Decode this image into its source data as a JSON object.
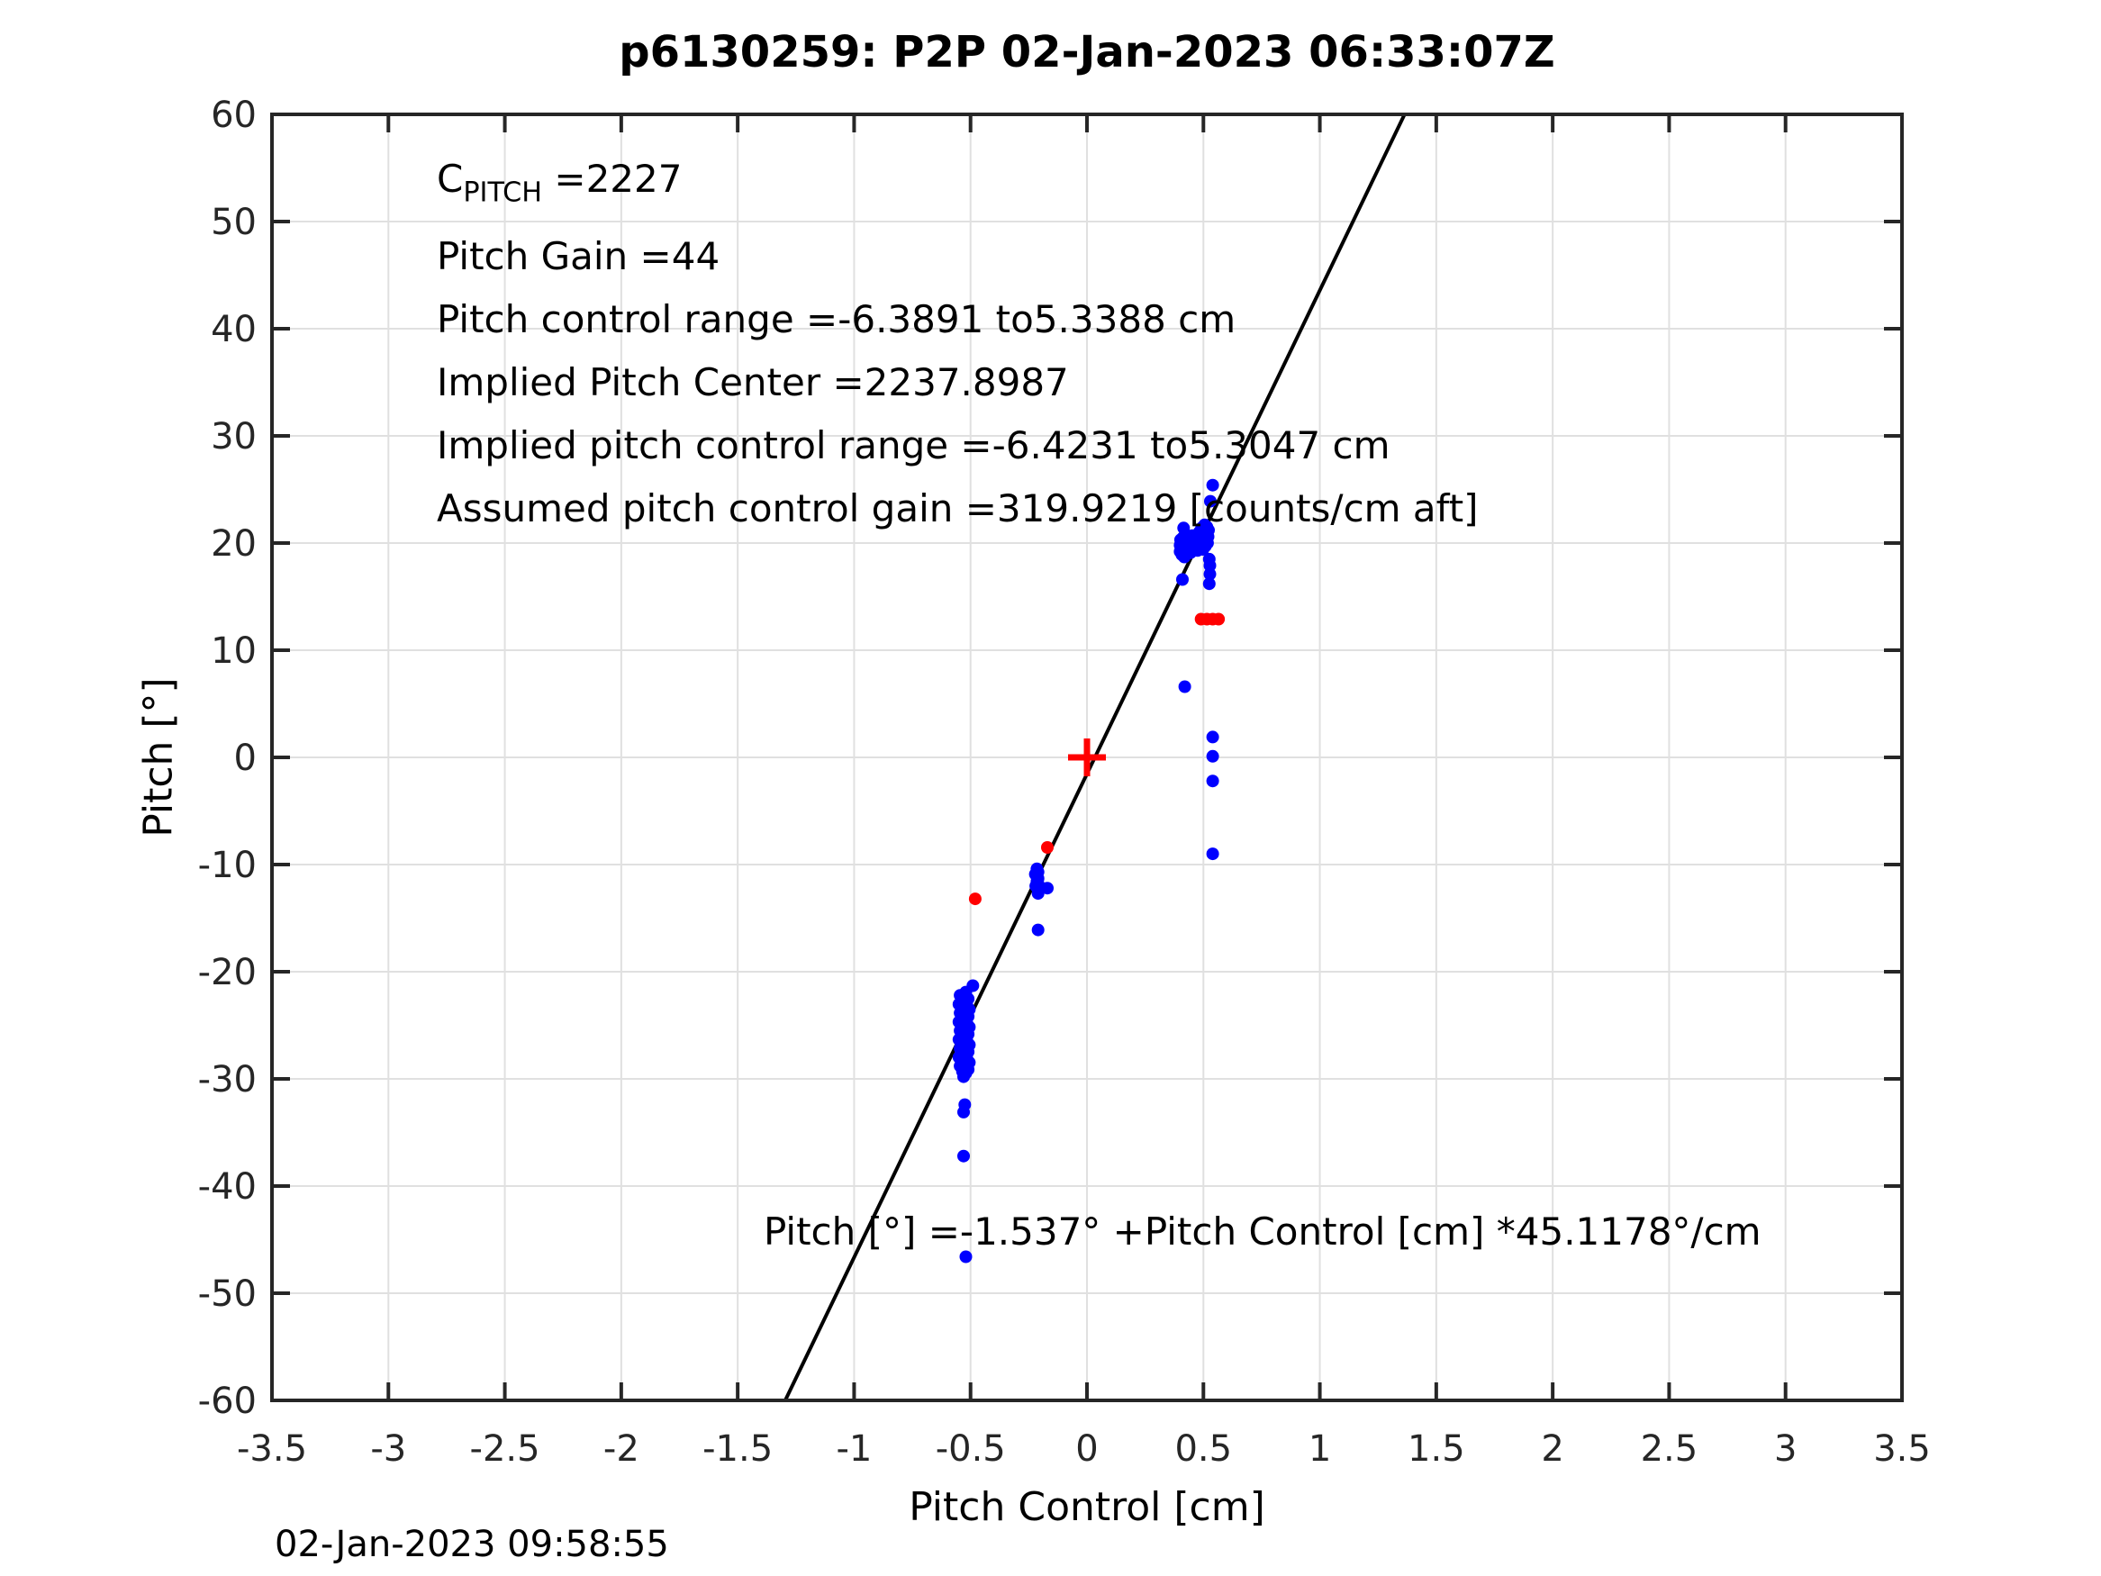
{
  "timestamp": "02-Jan-2023 09:58:55",
  "colors": {
    "data_blue": "#0000ff",
    "flag_red": "#ff0000",
    "fit_line": "#000000",
    "grid": "#e0e0e0",
    "axis": "#262626",
    "text": "#000000"
  },
  "chart_data": {
    "type": "scatter",
    "title": "p6130259: P2P 02-Jan-2023 06:33:07Z",
    "xlabel": "Pitch Control [cm]",
    "ylabel": "Pitch [°]",
    "xlim": [
      -3.5,
      3.5
    ],
    "ylim": [
      -60,
      60
    ],
    "xticks": [
      -3.5,
      -3,
      -2.5,
      -2,
      -1.5,
      -1,
      -0.5,
      0,
      0.5,
      1,
      1.5,
      2,
      2.5,
      3,
      3.5
    ],
    "yticks": [
      -60,
      -50,
      -40,
      -30,
      -20,
      -10,
      0,
      10,
      20,
      30,
      40,
      50,
      60
    ],
    "grid": true,
    "annotations": [
      {
        "parts": [
          {
            "text": "C"
          },
          {
            "text": "PITCH",
            "sub": true
          },
          {
            "text": " =2227"
          }
        ]
      },
      {
        "text": "Pitch Gain =44"
      },
      {
        "text": "Pitch control range =-6.3891 to5.3388 cm"
      },
      {
        "text": "Implied Pitch Center =2237.8987"
      },
      {
        "text": "Implied pitch control range =-6.4231 to5.3047 cm"
      },
      {
        "text": "Assumed pitch control gain =319.9219 [counts/cm aft]"
      }
    ],
    "equation_label": {
      "text": "Pitch [°] =-1.537° +Pitch Control [cm] *45.1178°/cm"
    },
    "fit_line": {
      "intercept": -1.537,
      "slope": 45.1178
    },
    "center_marker": {
      "x": 0,
      "y": 0,
      "half_size_px": 21,
      "stroke_px": 7
    },
    "series": [
      {
        "name": "pitch-data",
        "color": "#0000ff",
        "marker_radius_px": 7,
        "points": [
          [
            0.4,
            19.2
          ],
          [
            0.4,
            19.8
          ],
          [
            0.402,
            20.3
          ],
          [
            0.408,
            18.9
          ],
          [
            0.41,
            19.5
          ],
          [
            0.41,
            20.0
          ],
          [
            0.412,
            20.5
          ],
          [
            0.418,
            18.7
          ],
          [
            0.42,
            19.2
          ],
          [
            0.42,
            19.8
          ],
          [
            0.422,
            20.3
          ],
          [
            0.422,
            20.8
          ],
          [
            0.428,
            19.0
          ],
          [
            0.43,
            19.6
          ],
          [
            0.43,
            20.1
          ],
          [
            0.432,
            20.6
          ],
          [
            0.438,
            19.3
          ],
          [
            0.44,
            19.9
          ],
          [
            0.44,
            20.4
          ],
          [
            0.445,
            19.1
          ],
          [
            0.448,
            19.7
          ],
          [
            0.45,
            20.2
          ],
          [
            0.452,
            20.7
          ],
          [
            0.455,
            19.4
          ],
          [
            0.465,
            19.6
          ],
          [
            0.468,
            20.1
          ],
          [
            0.47,
            20.7
          ],
          [
            0.475,
            19.3
          ],
          [
            0.478,
            19.9
          ],
          [
            0.48,
            20.4
          ],
          [
            0.482,
            21.0
          ],
          [
            0.488,
            19.6
          ],
          [
            0.49,
            20.2
          ],
          [
            0.49,
            20.8
          ],
          [
            0.492,
            21.4
          ],
          [
            0.498,
            19.4
          ],
          [
            0.5,
            20.0
          ],
          [
            0.5,
            20.6
          ],
          [
            0.502,
            21.1
          ],
          [
            0.505,
            21.7
          ],
          [
            0.508,
            19.7
          ],
          [
            0.51,
            20.3
          ],
          [
            0.512,
            20.9
          ],
          [
            0.515,
            21.5
          ],
          [
            0.518,
            20.0
          ],
          [
            0.52,
            20.6
          ],
          [
            0.522,
            21.2
          ],
          [
            0.415,
            21.4
          ],
          [
            0.54,
            25.4
          ],
          [
            0.53,
            23.9
          ],
          [
            0.525,
            18.5
          ],
          [
            0.528,
            17.9
          ],
          [
            0.528,
            17.1
          ],
          [
            0.525,
            16.2
          ],
          [
            0.41,
            16.6
          ],
          [
            0.42,
            6.6
          ],
          [
            0.54,
            1.9
          ],
          [
            0.54,
            0.1
          ],
          [
            0.54,
            -2.2
          ],
          [
            0.54,
            -9.0
          ],
          [
            -0.215,
            -10.4
          ],
          [
            -0.21,
            -10.7
          ],
          [
            -0.218,
            -11.0
          ],
          [
            -0.21,
            -11.3
          ],
          [
            -0.215,
            -11.6
          ],
          [
            -0.208,
            -11.9
          ],
          [
            -0.215,
            -12.1
          ],
          [
            -0.222,
            -10.9
          ],
          [
            -0.212,
            -11.5
          ],
          [
            -0.22,
            -12.0
          ],
          [
            -0.17,
            -12.2
          ],
          [
            -0.21,
            -12.7
          ],
          [
            -0.21,
            -16.1
          ],
          [
            -0.49,
            -21.3
          ],
          [
            -0.52,
            -21.9
          ],
          [
            -0.545,
            -22.2
          ],
          [
            -0.525,
            -22.37
          ],
          [
            -0.51,
            -22.53
          ],
          [
            -0.535,
            -22.7
          ],
          [
            -0.52,
            -22.86
          ],
          [
            -0.55,
            -23.03
          ],
          [
            -0.515,
            -23.19
          ],
          [
            -0.53,
            -23.36
          ],
          [
            -0.505,
            -23.52
          ],
          [
            -0.54,
            -23.69
          ],
          [
            -0.545,
            -23.85
          ],
          [
            -0.525,
            -24.02
          ],
          [
            -0.51,
            -24.18
          ],
          [
            -0.535,
            -24.35
          ],
          [
            -0.52,
            -24.51
          ],
          [
            -0.55,
            -24.68
          ],
          [
            -0.515,
            -24.84
          ],
          [
            -0.53,
            -25.01
          ],
          [
            -0.505,
            -25.17
          ],
          [
            -0.54,
            -25.34
          ],
          [
            -0.545,
            -25.5
          ],
          [
            -0.525,
            -25.67
          ],
          [
            -0.51,
            -25.83
          ],
          [
            -0.535,
            -26.0
          ],
          [
            -0.52,
            -26.16
          ],
          [
            -0.55,
            -26.33
          ],
          [
            -0.515,
            -26.49
          ],
          [
            -0.53,
            -26.66
          ],
          [
            -0.505,
            -26.82
          ],
          [
            -0.54,
            -26.99
          ],
          [
            -0.545,
            -27.15
          ],
          [
            -0.525,
            -27.32
          ],
          [
            -0.51,
            -27.48
          ],
          [
            -0.535,
            -27.65
          ],
          [
            -0.52,
            -27.81
          ],
          [
            -0.55,
            -27.98
          ],
          [
            -0.515,
            -28.14
          ],
          [
            -0.53,
            -28.31
          ],
          [
            -0.505,
            -28.47
          ],
          [
            -0.54,
            -28.64
          ],
          [
            -0.545,
            -28.8
          ],
          [
            -0.525,
            -28.97
          ],
          [
            -0.51,
            -29.13
          ],
          [
            -0.535,
            -29.3
          ],
          [
            -0.52,
            -29.46
          ],
          [
            -0.53,
            -29.8
          ],
          [
            -0.525,
            -32.4
          ],
          [
            -0.53,
            -33.1
          ],
          [
            -0.53,
            -37.2
          ],
          [
            -0.52,
            -46.6
          ]
        ]
      },
      {
        "name": "flagged-data",
        "color": "#ff0000",
        "marker_radius_px": 7,
        "points": [
          [
            0.49,
            12.9
          ],
          [
            0.515,
            12.9
          ],
          [
            0.54,
            12.9
          ],
          [
            0.565,
            12.9
          ],
          [
            -0.17,
            -8.4
          ],
          [
            -0.48,
            -13.2
          ]
        ]
      }
    ]
  }
}
